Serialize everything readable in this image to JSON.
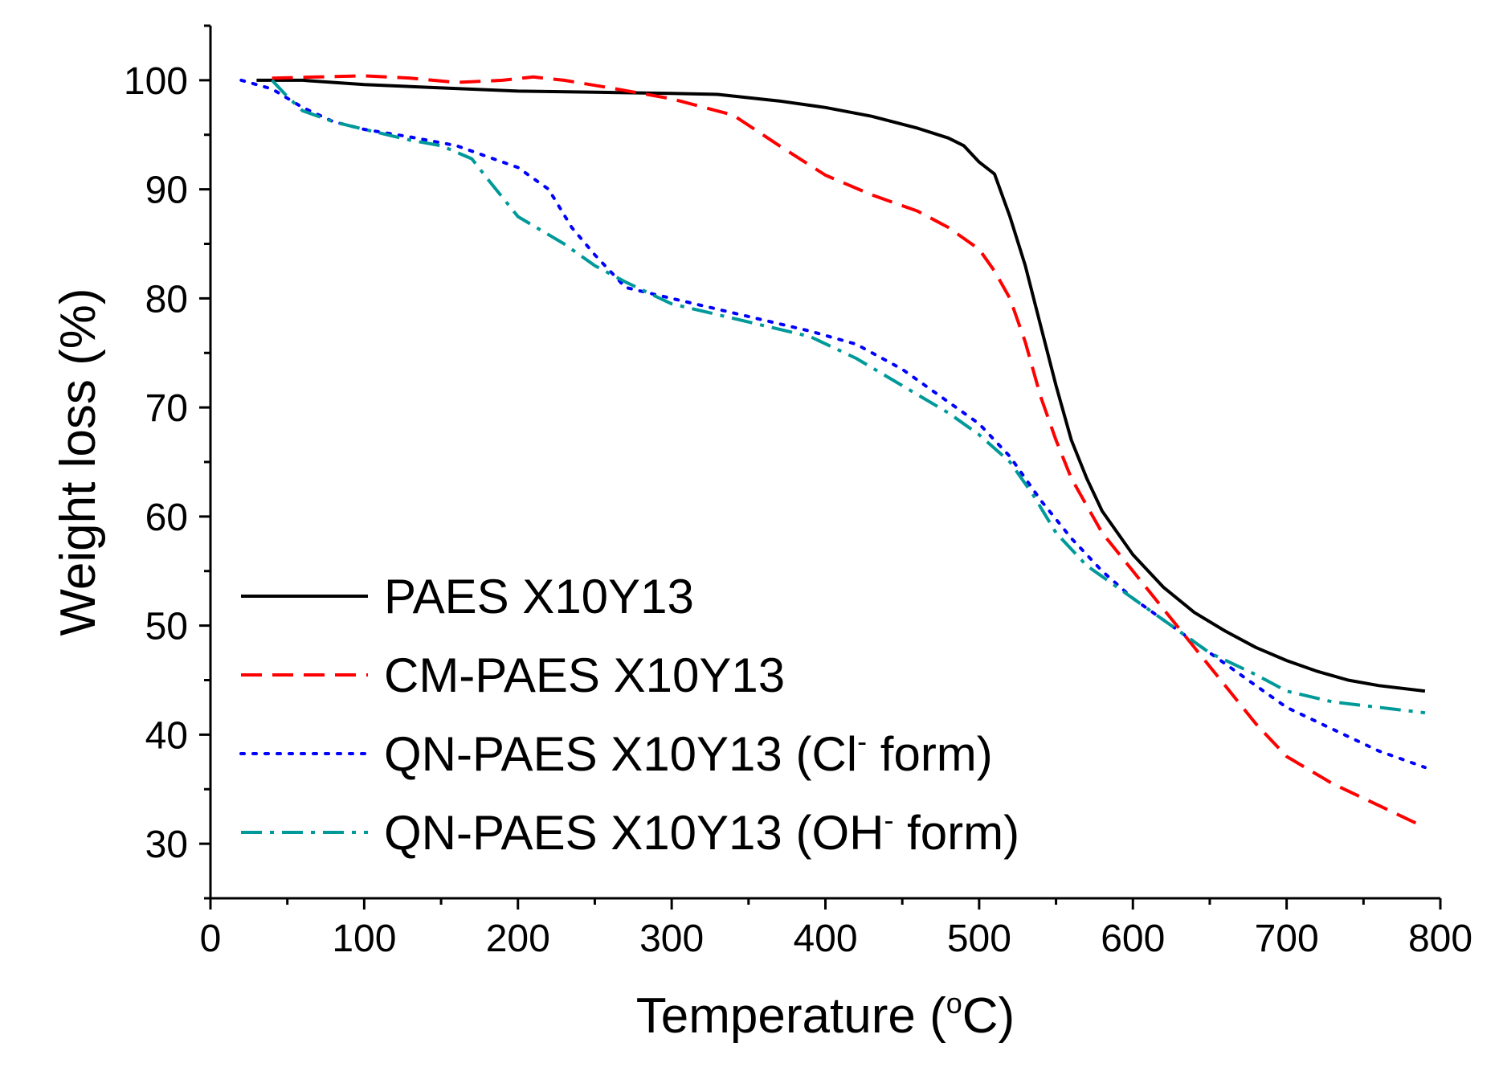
{
  "chart_data": {
    "type": "line",
    "title": "",
    "xlabel": "Temperature",
    "xlabel_unit_sup": "o",
    "xlabel_unit": "C",
    "ylabel": "Weight loss (%)",
    "xlim": [
      0,
      800
    ],
    "ylim": [
      25,
      105
    ],
    "x_ticks": [
      0,
      100,
      200,
      300,
      400,
      500,
      600,
      700,
      800
    ],
    "y_ticks": [
      30,
      40,
      50,
      60,
      70,
      80,
      90,
      100
    ],
    "grid": false,
    "legend_position": "bottom-left",
    "series": [
      {
        "name": "PAES X10Y13",
        "legend_main": "PAES X10Y13",
        "color": "#000000",
        "style": "solid",
        "x": [
          30,
          60,
          100,
          150,
          200,
          250,
          300,
          330,
          370,
          400,
          430,
          460,
          480,
          490,
          500,
          510,
          520,
          530,
          540,
          550,
          560,
          570,
          580,
          600,
          620,
          640,
          660,
          680,
          700,
          720,
          740,
          760,
          790
        ],
        "y": [
          100,
          100,
          99.6,
          99.3,
          99.0,
          98.9,
          98.8,
          98.7,
          98.1,
          97.5,
          96.7,
          95.6,
          94.7,
          94.0,
          92.5,
          91.4,
          87.5,
          83.0,
          77.5,
          72.0,
          67.0,
          63.5,
          60.5,
          56.5,
          53.5,
          51.2,
          49.5,
          48.0,
          46.8,
          45.8,
          45.0,
          44.5,
          44.0
        ]
      },
      {
        "name": "CM-PAES X10Y13",
        "legend_main": "CM-PAES X10Y13",
        "color": "#ff0000",
        "style": "dashed",
        "x": [
          40,
          70,
          100,
          130,
          160,
          190,
          210,
          230,
          260,
          300,
          340,
          370,
          400,
          430,
          460,
          480,
          500,
          510,
          520,
          530,
          540,
          550,
          560,
          570,
          580,
          600,
          620,
          640,
          660,
          680,
          700,
          730,
          760,
          790
        ],
        "y": [
          100.2,
          100.3,
          100.4,
          100.2,
          99.8,
          100.0,
          100.3,
          100.0,
          99.3,
          98.3,
          96.8,
          94.0,
          91.3,
          89.5,
          88.0,
          86.5,
          84.5,
          82.5,
          80.0,
          76.0,
          71.0,
          67.0,
          63.5,
          61.0,
          58.5,
          55.0,
          51.5,
          48.0,
          44.5,
          41.0,
          38.0,
          35.5,
          33.5,
          31.5
        ]
      },
      {
        "name": "QN-PAES X10Y13 (Cl- form)",
        "legend_main": "QN-PAES X10Y13 (Cl",
        "legend_sup": "-",
        "legend_end": " form)",
        "color": "#0000ff",
        "style": "dotted",
        "x": [
          20,
          40,
          60,
          80,
          100,
          130,
          160,
          180,
          200,
          220,
          235,
          250,
          270,
          300,
          330,
          360,
          390,
          420,
          450,
          480,
          500,
          520,
          540,
          560,
          580,
          600,
          620,
          640,
          660,
          680,
          700,
          730,
          760,
          790
        ],
        "y": [
          100,
          99.2,
          97.5,
          96.2,
          95.5,
          94.8,
          94.0,
          93.0,
          92.0,
          90.0,
          86.5,
          84.0,
          81.0,
          80.0,
          79.0,
          78.0,
          77.0,
          75.8,
          73.5,
          70.5,
          68.5,
          65.5,
          61.5,
          58.0,
          55.0,
          52.5,
          50.5,
          48.5,
          46.5,
          44.5,
          42.5,
          40.5,
          38.5,
          37.0
        ]
      },
      {
        "name": "QN-PAES X10Y13 (OH- form)",
        "legend_main": "QN-PAES X10Y13 (OH",
        "legend_sup": "-",
        "legend_end": " form)",
        "color": "#009999",
        "style": "dash-dot",
        "x": [
          40,
          50,
          60,
          80,
          100,
          130,
          150,
          170,
          180,
          200,
          230,
          250,
          270,
          300,
          330,
          360,
          390,
          420,
          450,
          480,
          500,
          520,
          535,
          550,
          560,
          570,
          590,
          610,
          630,
          650,
          680,
          700,
          730,
          760,
          790
        ],
        "y": [
          100,
          98.5,
          97.2,
          96.2,
          95.5,
          94.5,
          94.0,
          92.8,
          91.0,
          87.5,
          85.0,
          83.0,
          81.5,
          79.5,
          78.5,
          77.5,
          76.5,
          74.5,
          72.0,
          69.5,
          67.5,
          65.0,
          62.0,
          58.5,
          57.0,
          55.5,
          53.5,
          51.5,
          49.5,
          47.5,
          45.5,
          44.0,
          43.0,
          42.5,
          42.0
        ]
      }
    ]
  }
}
